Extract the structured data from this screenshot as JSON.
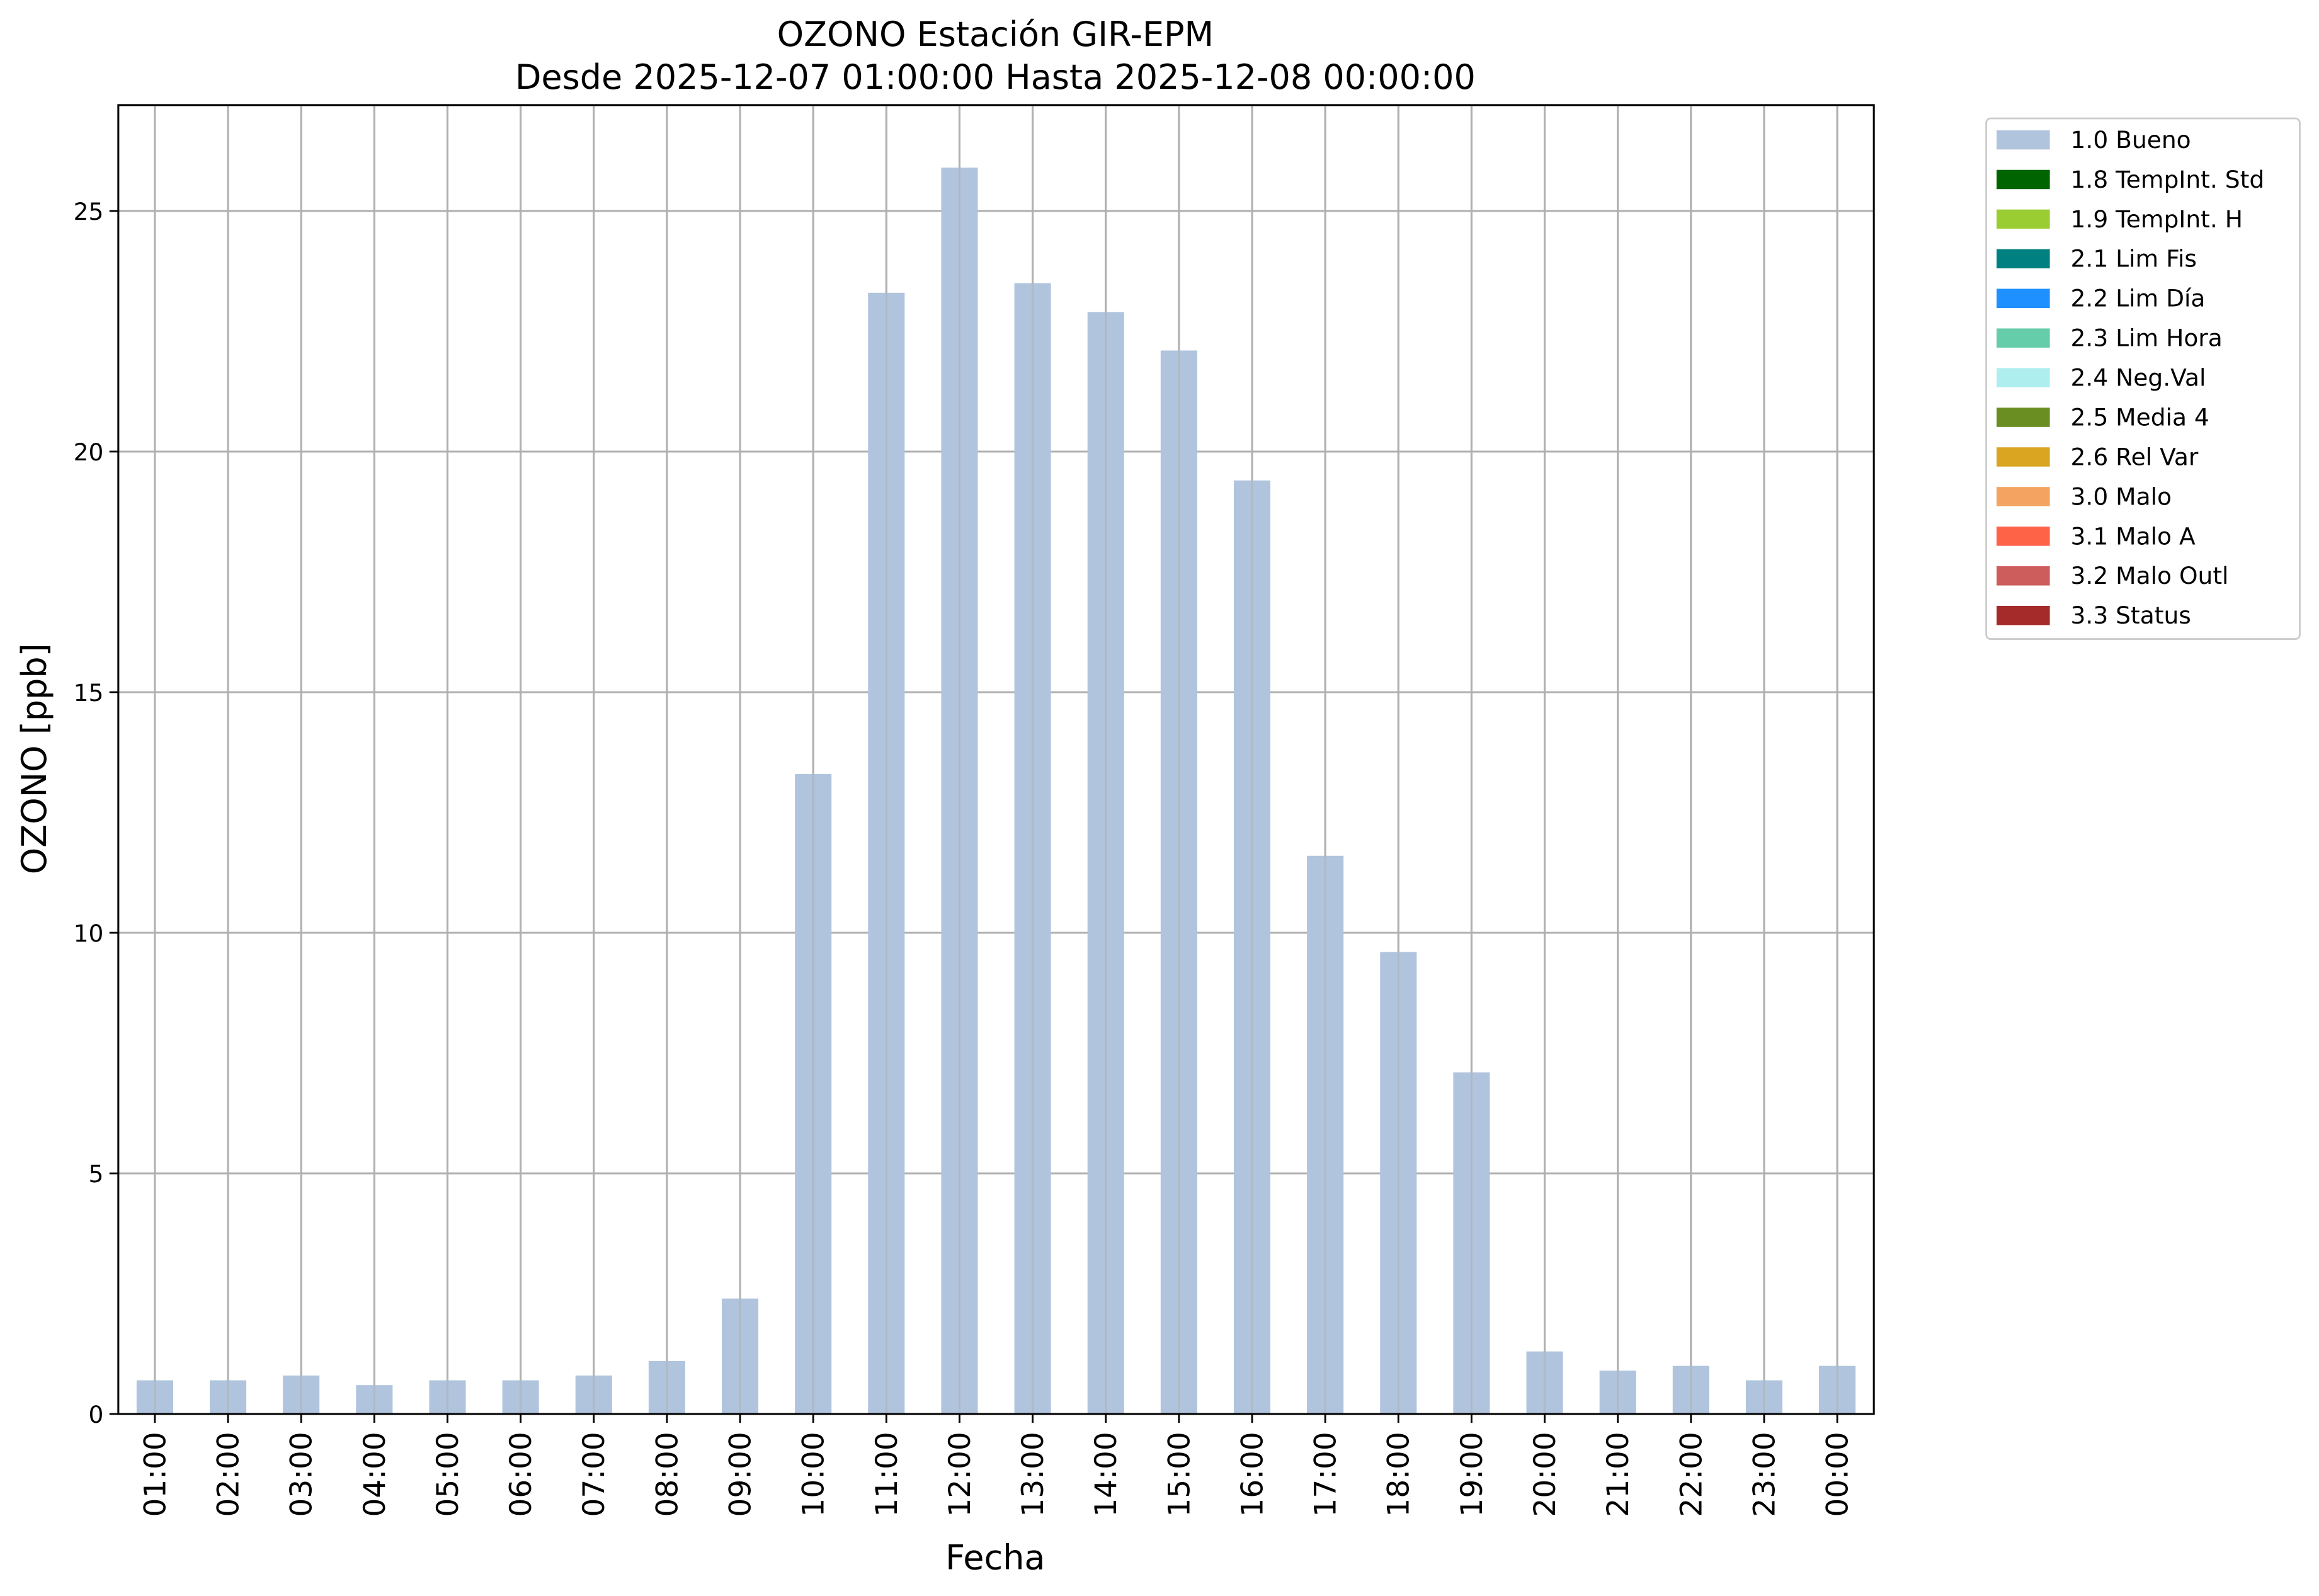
{
  "chart_data": {
    "type": "bar",
    "title": "OZONO Estación GIR-EPM",
    "subtitle": "Desde 2025-12-07 01:00:00 Hasta 2025-12-08 00:00:00",
    "x_label": "Fecha",
    "y_label": "OZONO [ppb]",
    "categories": [
      "01:00",
      "02:00",
      "03:00",
      "04:00",
      "05:00",
      "06:00",
      "07:00",
      "08:00",
      "09:00",
      "10:00",
      "11:00",
      "12:00",
      "13:00",
      "14:00",
      "15:00",
      "16:00",
      "17:00",
      "18:00",
      "19:00",
      "20:00",
      "21:00",
      "22:00",
      "23:00",
      "00:00"
    ],
    "series": [
      {
        "name": "1.0 Bueno",
        "color": "#b0c4de",
        "values": [
          0.7,
          0.7,
          0.8,
          0.6,
          0.7,
          0.7,
          0.8,
          1.1,
          2.4,
          13.3,
          23.3,
          25.9,
          23.5,
          22.9,
          22.1,
          19.4,
          11.6,
          9.6,
          7.1,
          1.3,
          0.9,
          1.0,
          0.7,
          1.0
        ]
      },
      {
        "name": "1.8 TempInt. Std",
        "color": "#006400"
      },
      {
        "name": "1.9 TempInt. H",
        "color": "#9acd32"
      },
      {
        "name": "2.1 Lim Fis",
        "color": "#008080"
      },
      {
        "name": "2.2 Lim Día",
        "color": "#1e90ff"
      },
      {
        "name": "2.3 Lim Hora",
        "color": "#66cdaa"
      },
      {
        "name": "2.4 Neg.Val",
        "color": "#afeeee"
      },
      {
        "name": "2.5 Media 4",
        "color": "#6b8e23"
      },
      {
        "name": "2.6 Rel Var",
        "color": "#daa520"
      },
      {
        "name": "3.0 Malo",
        "color": "#f4a460"
      },
      {
        "name": "3.1 Malo A",
        "color": "#ff6347"
      },
      {
        "name": "3.2 Malo Outl",
        "color": "#cd5c5c"
      },
      {
        "name": "3.3 Status",
        "color": "#a52a2a"
      }
    ],
    "ylim": [
      0,
      27.2
    ],
    "yticks": [
      0,
      5,
      10,
      15,
      20,
      25
    ],
    "grid": true,
    "legend": "outside upper right"
  }
}
